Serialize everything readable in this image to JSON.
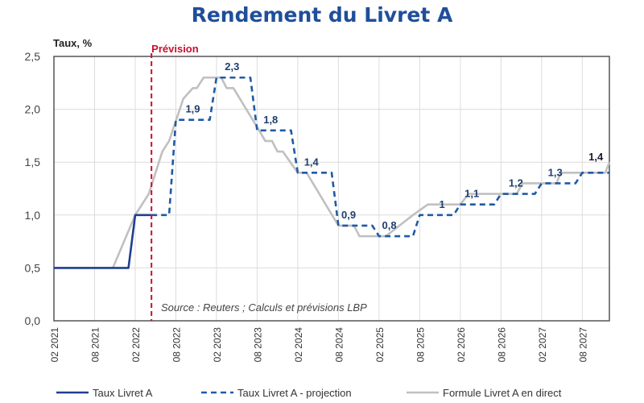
{
  "chart_data": {
    "type": "line",
    "title": "Rendement du Livret A",
    "ylabel": "Taux, %",
    "xlabel": "",
    "ylim": [
      0,
      2.5
    ],
    "yticks": [
      "0,0",
      "0,5",
      "1,0",
      "1,5",
      "2,0",
      "2,5"
    ],
    "ytick_values": [
      0,
      0.5,
      1.0,
      1.5,
      2.0,
      2.5
    ],
    "x_unit": "months since 02 2021",
    "xlim": [
      0,
      82
    ],
    "xticks": [
      "02 2021",
      "08 2021",
      "02 2022",
      "08 2022",
      "02 2023",
      "08 2023",
      "02 2024",
      "08 2024",
      "02 2025",
      "08 2025",
      "02 2026",
      "08 2026",
      "02 2027",
      "08 2027"
    ],
    "grid": true,
    "forecast_marker": {
      "label": "Prévision",
      "x": 14.4,
      "color": "#c8102e"
    },
    "source_note": "Source : Reuters ; Calculs et prévisions LBP",
    "legend_position": "bottom",
    "series": [
      {
        "name": "Taux Livret A",
        "color": "#1f3f8f",
        "style": "solid",
        "points": [
          [
            0,
            0.5
          ],
          [
            11,
            0.5
          ],
          [
            12,
            1.0
          ],
          [
            14.4,
            1.0
          ]
        ]
      },
      {
        "name": "Taux Livret A - projection",
        "color": "#1f5aa6",
        "style": "dashed",
        "points": [
          [
            14.4,
            1.0
          ],
          [
            17,
            1.0
          ],
          [
            18,
            1.9
          ],
          [
            23,
            1.9
          ],
          [
            24,
            2.3
          ],
          [
            29,
            2.3
          ],
          [
            30,
            1.8
          ],
          [
            35,
            1.8
          ],
          [
            36,
            1.4
          ],
          [
            41,
            1.4
          ],
          [
            42,
            0.9
          ],
          [
            47,
            0.9
          ],
          [
            48,
            0.8
          ],
          [
            53,
            0.8
          ],
          [
            54,
            1.0
          ],
          [
            59,
            1.0
          ],
          [
            60,
            1.1
          ],
          [
            65,
            1.1
          ],
          [
            66,
            1.2
          ],
          [
            71,
            1.2
          ],
          [
            72,
            1.3
          ],
          [
            77,
            1.3
          ],
          [
            78,
            1.4
          ],
          [
            82,
            1.4
          ]
        ]
      },
      {
        "name": "Formule Livret A en direct",
        "color": "#c0c0c0",
        "style": "solid",
        "points": [
          [
            8.7,
            0.5
          ],
          [
            12,
            1.0
          ],
          [
            14,
            1.2
          ],
          [
            16,
            1.6
          ],
          [
            17,
            1.7
          ],
          [
            19.1,
            2.1
          ],
          [
            20.5,
            2.2
          ],
          [
            21.1,
            2.2
          ],
          [
            22.1,
            2.3
          ],
          [
            24.7,
            2.3
          ],
          [
            25.5,
            2.2
          ],
          [
            26.5,
            2.2
          ],
          [
            30.3,
            1.8
          ],
          [
            31.2,
            1.7
          ],
          [
            32.2,
            1.7
          ],
          [
            33,
            1.6
          ],
          [
            33.8,
            1.6
          ],
          [
            36,
            1.4
          ],
          [
            37.3,
            1.4
          ],
          [
            42,
            0.9
          ],
          [
            44.3,
            0.9
          ],
          [
            45.1,
            0.8
          ],
          [
            49,
            0.8
          ],
          [
            53,
            1.0
          ],
          [
            55.2,
            1.1
          ],
          [
            60,
            1.1
          ],
          [
            61.2,
            1.2
          ],
          [
            68.3,
            1.2
          ],
          [
            69.2,
            1.3
          ],
          [
            74.2,
            1.3
          ],
          [
            74.8,
            1.4
          ],
          [
            81.4,
            1.4
          ],
          [
            82,
            1.5
          ]
        ]
      }
    ],
    "data_labels": [
      {
        "text": "1,9",
        "x": 20.5,
        "y": 1.9
      },
      {
        "text": "2,3",
        "x": 26.3,
        "y": 2.3
      },
      {
        "text": "1,8",
        "x": 32,
        "y": 1.8
      },
      {
        "text": "1,4",
        "x": 38,
        "y": 1.4
      },
      {
        "text": "0,9",
        "x": 43.5,
        "y": 0.9
      },
      {
        "text": "0,8",
        "x": 49.5,
        "y": 0.8
      },
      {
        "text": "1",
        "x": 57.3,
        "y": 1.0
      },
      {
        "text": "1,1",
        "x": 61.7,
        "y": 1.1
      },
      {
        "text": "1,2",
        "x": 68.2,
        "y": 1.2
      },
      {
        "text": "1,3",
        "x": 74,
        "y": 1.3
      },
      {
        "text": "1,4",
        "x": 80,
        "y": 1.45
      }
    ]
  }
}
